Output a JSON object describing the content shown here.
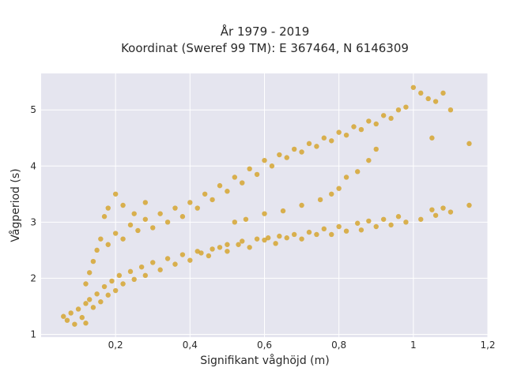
{
  "chart_data": {
    "type": "scatter",
    "title": "År 1979 - 2019",
    "subtitle": "Koordinat (Sweref 99 TM): E 367464, N 6146309",
    "xlabel": "Signifikant våghöjd (m)",
    "ylabel": "Vågperiod (s)",
    "xlim": [
      0.0,
      1.2
    ],
    "ylim": [
      0.95,
      5.65
    ],
    "grid": true,
    "legend": "none",
    "x_ticks": [
      0.2,
      0.4,
      0.6,
      0.8,
      1.0,
      1.2
    ],
    "x_tick_labels": [
      "0,2",
      "0,4",
      "0,6",
      "0,8",
      "1",
      "1,2"
    ],
    "y_ticks": [
      1,
      2,
      3,
      4,
      5
    ],
    "y_tick_labels": [
      "1",
      "2",
      "3",
      "4",
      "5"
    ],
    "colors": {
      "marker": "#d4a22a",
      "plot_bg": "#e5e5ef",
      "grid": "#ffffff"
    },
    "series": [
      {
        "points": [
          [
            0.06,
            1.32
          ],
          [
            0.07,
            1.25
          ],
          [
            0.08,
            1.38
          ],
          [
            0.09,
            1.18
          ],
          [
            0.1,
            1.45
          ],
          [
            0.11,
            1.3
          ],
          [
            0.12,
            1.55
          ],
          [
            0.12,
            1.2
          ],
          [
            0.13,
            1.62
          ],
          [
            0.14,
            1.48
          ],
          [
            0.15,
            1.72
          ],
          [
            0.16,
            1.58
          ],
          [
            0.17,
            1.85
          ],
          [
            0.18,
            1.7
          ],
          [
            0.19,
            1.95
          ],
          [
            0.2,
            1.78
          ],
          [
            0.21,
            2.05
          ],
          [
            0.22,
            1.9
          ],
          [
            0.24,
            2.12
          ],
          [
            0.25,
            1.98
          ],
          [
            0.27,
            2.2
          ],
          [
            0.28,
            2.05
          ],
          [
            0.3,
            2.28
          ],
          [
            0.32,
            2.15
          ],
          [
            0.34,
            2.35
          ],
          [
            0.36,
            2.25
          ],
          [
            0.38,
            2.42
          ],
          [
            0.4,
            2.32
          ],
          [
            0.42,
            2.48
          ],
          [
            0.45,
            2.4
          ],
          [
            0.48,
            2.55
          ],
          [
            0.5,
            2.48
          ],
          [
            0.53,
            2.6
          ],
          [
            0.56,
            2.55
          ],
          [
            0.6,
            2.68
          ],
          [
            0.63,
            2.62
          ],
          [
            0.66,
            2.72
          ],
          [
            0.7,
            2.7
          ],
          [
            0.74,
            2.78
          ],
          [
            0.78,
            2.78
          ],
          [
            0.82,
            2.84
          ],
          [
            0.86,
            2.86
          ],
          [
            0.9,
            2.92
          ],
          [
            0.94,
            2.95
          ],
          [
            0.98,
            3.0
          ],
          [
            1.02,
            3.05
          ],
          [
            1.06,
            3.12
          ],
          [
            1.1,
            3.18
          ],
          [
            1.15,
            3.3
          ],
          [
            1.08,
            3.25
          ],
          [
            1.05,
            3.22
          ],
          [
            0.96,
            3.1
          ],
          [
            0.92,
            3.05
          ],
          [
            0.88,
            3.02
          ],
          [
            0.85,
            2.98
          ],
          [
            0.8,
            2.92
          ],
          [
            0.76,
            2.88
          ],
          [
            0.72,
            2.82
          ],
          [
            0.68,
            2.78
          ],
          [
            0.64,
            2.75
          ],
          [
            0.61,
            2.72
          ],
          [
            0.58,
            2.7
          ],
          [
            0.54,
            2.66
          ],
          [
            0.5,
            2.6
          ],
          [
            0.46,
            2.52
          ],
          [
            0.43,
            2.45
          ],
          [
            0.12,
            1.9
          ],
          [
            0.13,
            2.1
          ],
          [
            0.14,
            2.3
          ],
          [
            0.15,
            2.5
          ],
          [
            0.16,
            2.7
          ],
          [
            0.18,
            2.6
          ],
          [
            0.2,
            2.8
          ],
          [
            0.22,
            2.7
          ],
          [
            0.24,
            2.95
          ],
          [
            0.26,
            2.85
          ],
          [
            0.28,
            3.05
          ],
          [
            0.3,
            2.9
          ],
          [
            0.32,
            3.15
          ],
          [
            0.34,
            3.0
          ],
          [
            0.36,
            3.25
          ],
          [
            0.38,
            3.1
          ],
          [
            0.4,
            3.35
          ],
          [
            0.42,
            3.25
          ],
          [
            0.44,
            3.5
          ],
          [
            0.46,
            3.4
          ],
          [
            0.48,
            3.65
          ],
          [
            0.5,
            3.55
          ],
          [
            0.52,
            3.8
          ],
          [
            0.54,
            3.7
          ],
          [
            0.56,
            3.95
          ],
          [
            0.58,
            3.85
          ],
          [
            0.6,
            4.1
          ],
          [
            0.62,
            4.0
          ],
          [
            0.64,
            4.2
          ],
          [
            0.66,
            4.15
          ],
          [
            0.68,
            4.3
          ],
          [
            0.7,
            4.25
          ],
          [
            0.72,
            4.4
          ],
          [
            0.74,
            4.35
          ],
          [
            0.76,
            4.5
          ],
          [
            0.78,
            4.45
          ],
          [
            0.8,
            4.6
          ],
          [
            0.82,
            4.55
          ],
          [
            0.84,
            4.7
          ],
          [
            0.86,
            4.65
          ],
          [
            0.88,
            4.8
          ],
          [
            0.9,
            4.75
          ],
          [
            0.92,
            4.9
          ],
          [
            0.94,
            4.85
          ],
          [
            0.96,
            5.0
          ],
          [
            0.98,
            5.05
          ],
          [
            1.0,
            5.4
          ],
          [
            1.02,
            5.3
          ],
          [
            1.04,
            5.2
          ],
          [
            1.06,
            5.15
          ],
          [
            1.08,
            5.3
          ],
          [
            1.1,
            5.0
          ],
          [
            1.15,
            4.4
          ],
          [
            1.05,
            4.5
          ],
          [
            0.9,
            4.3
          ],
          [
            0.88,
            4.1
          ],
          [
            0.85,
            3.9
          ],
          [
            0.82,
            3.8
          ],
          [
            0.8,
            3.6
          ],
          [
            0.78,
            3.5
          ],
          [
            0.75,
            3.4
          ],
          [
            0.7,
            3.3
          ],
          [
            0.65,
            3.2
          ],
          [
            0.6,
            3.15
          ],
          [
            0.55,
            3.05
          ],
          [
            0.52,
            3.0
          ],
          [
            0.18,
            3.25
          ],
          [
            0.2,
            3.5
          ],
          [
            0.22,
            3.3
          ],
          [
            0.25,
            3.15
          ],
          [
            0.28,
            3.35
          ],
          [
            0.17,
            3.1
          ]
        ]
      }
    ]
  }
}
